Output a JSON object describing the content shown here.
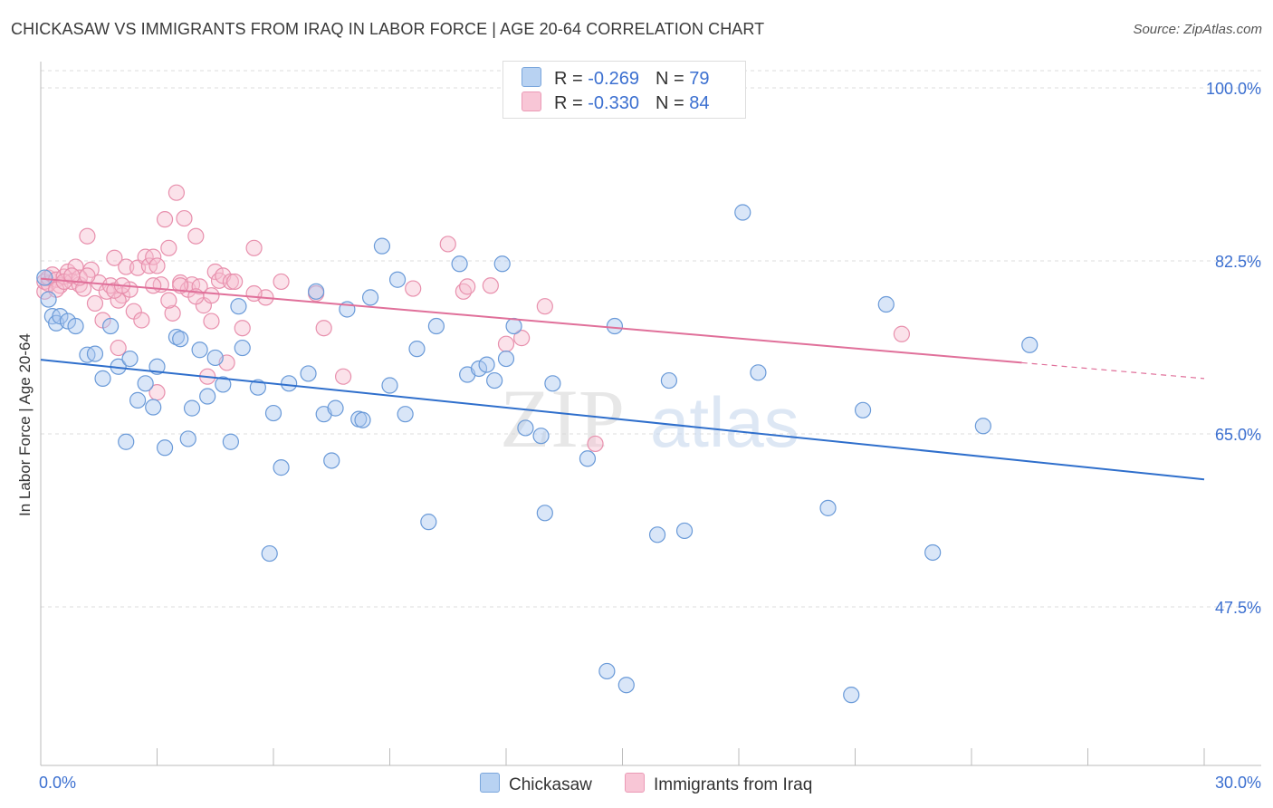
{
  "title": "CHICKASAW VS IMMIGRANTS FROM IRAQ IN LABOR FORCE | AGE 20-64 CORRELATION CHART",
  "source": "Source: ZipAtlas.com",
  "watermark": {
    "zip": "ZIP",
    "atlas": "atlas"
  },
  "legend": {
    "series1": {
      "r_label": "R = ",
      "r_value": "-0.269",
      "n_label": "N = ",
      "n_value": "79"
    },
    "series2": {
      "r_label": "R = ",
      "r_value": "-0.330",
      "n_label": "N = ",
      "n_value": "84"
    }
  },
  "colors": {
    "chickasaw_fill": "#aac8f0",
    "chickasaw_stroke": "#6a9ad8",
    "chickasaw_line": "#2f6fcc",
    "iraq_fill": "#f6bfd0",
    "iraq_stroke": "#e890ad",
    "iraq_line": "#e0709a",
    "tick_label": "#3b6fd0",
    "grid": "#dddddd"
  },
  "chart_data": {
    "type": "scatter",
    "title": "CHICKASAW VS IMMIGRANTS FROM IRAQ IN LABOR FORCE | AGE 20-64 CORRELATION CHART",
    "xlabel": "",
    "ylabel": "In Labor Force | Age 20-64",
    "xlim": [
      0,
      30
    ],
    "ylim": [
      32,
      104
    ],
    "x_tick_labels": [
      "0.0%",
      "30.0%"
    ],
    "y_ticks": [
      47.5,
      65.0,
      82.5,
      100.0
    ],
    "y_tick_labels": [
      "47.5%",
      "65.0%",
      "82.5%",
      "100.0%"
    ],
    "grid": "horizontal dashed",
    "legend_position": "top-center",
    "series": [
      {
        "name": "Chickasaw",
        "points": [
          [
            0.1,
            80.8
          ],
          [
            0.2,
            78.6
          ],
          [
            0.3,
            76.9
          ],
          [
            0.4,
            76.2
          ],
          [
            0.5,
            76.9
          ],
          [
            0.7,
            76.4
          ],
          [
            0.9,
            75.9
          ],
          [
            1.2,
            73.0
          ],
          [
            1.4,
            73.1
          ],
          [
            1.6,
            70.6
          ],
          [
            1.8,
            75.9
          ],
          [
            2.0,
            71.8
          ],
          [
            2.2,
            64.2
          ],
          [
            2.3,
            72.6
          ],
          [
            2.5,
            68.4
          ],
          [
            2.7,
            70.1
          ],
          [
            2.9,
            67.7
          ],
          [
            3.0,
            71.8
          ],
          [
            3.2,
            63.6
          ],
          [
            3.5,
            74.8
          ],
          [
            3.6,
            74.6
          ],
          [
            3.8,
            64.5
          ],
          [
            3.9,
            67.6
          ],
          [
            4.1,
            73.5
          ],
          [
            4.3,
            68.8
          ],
          [
            4.5,
            72.7
          ],
          [
            4.7,
            70.0
          ],
          [
            4.9,
            64.2
          ],
          [
            5.1,
            77.9
          ],
          [
            5.2,
            73.7
          ],
          [
            5.6,
            69.7
          ],
          [
            6.0,
            67.1
          ],
          [
            6.2,
            61.6
          ],
          [
            6.4,
            70.1
          ],
          [
            6.9,
            71.1
          ],
          [
            7.1,
            79.4
          ],
          [
            7.3,
            67.0
          ],
          [
            7.5,
            62.3
          ],
          [
            7.6,
            67.6
          ],
          [
            7.9,
            77.6
          ],
          [
            8.2,
            66.5
          ],
          [
            8.3,
            66.4
          ],
          [
            8.5,
            78.8
          ],
          [
            8.8,
            84.0
          ],
          [
            9.0,
            69.9
          ],
          [
            9.2,
            80.6
          ],
          [
            9.4,
            67.0
          ],
          [
            9.7,
            73.6
          ],
          [
            10.0,
            56.1
          ],
          [
            10.2,
            75.9
          ],
          [
            10.8,
            82.2
          ],
          [
            11.0,
            71.0
          ],
          [
            11.3,
            71.6
          ],
          [
            11.5,
            72.0
          ],
          [
            11.7,
            70.4
          ],
          [
            11.9,
            82.2
          ],
          [
            12.0,
            72.6
          ],
          [
            12.2,
            75.9
          ],
          [
            12.5,
            65.6
          ],
          [
            12.9,
            64.8
          ],
          [
            13.0,
            57.0
          ],
          [
            13.2,
            70.1
          ],
          [
            14.1,
            62.5
          ],
          [
            14.6,
            41.0
          ],
          [
            14.8,
            75.9
          ],
          [
            15.1,
            39.6
          ],
          [
            15.9,
            54.8
          ],
          [
            16.2,
            70.4
          ],
          [
            16.6,
            55.2
          ],
          [
            18.1,
            87.4
          ],
          [
            18.5,
            71.2
          ],
          [
            20.3,
            57.5
          ],
          [
            20.9,
            38.6
          ],
          [
            21.2,
            67.4
          ],
          [
            21.8,
            78.1
          ],
          [
            23.0,
            53.0
          ],
          [
            24.3,
            65.8
          ],
          [
            25.5,
            74.0
          ],
          [
            5.9,
            52.9
          ]
        ],
        "trend": {
          "x": [
            0,
            30
          ],
          "y": [
            72.5,
            60.4
          ]
        }
      },
      {
        "name": "Immigrants from Iraq",
        "points": [
          [
            0.1,
            79.4
          ],
          [
            0.1,
            80.4
          ],
          [
            0.2,
            80.2
          ],
          [
            0.2,
            80.8
          ],
          [
            0.3,
            81.1
          ],
          [
            0.4,
            80.6
          ],
          [
            0.5,
            80.0
          ],
          [
            0.6,
            80.9
          ],
          [
            0.7,
            81.4
          ],
          [
            0.8,
            80.4
          ],
          [
            0.9,
            81.9
          ],
          [
            1.0,
            80.1
          ],
          [
            1.1,
            79.7
          ],
          [
            1.2,
            85.0
          ],
          [
            1.3,
            81.6
          ],
          [
            1.4,
            78.2
          ],
          [
            1.5,
            80.3
          ],
          [
            1.6,
            76.5
          ],
          [
            1.7,
            79.4
          ],
          [
            1.8,
            80.0
          ],
          [
            1.9,
            82.8
          ],
          [
            2.0,
            73.7
          ],
          [
            2.1,
            79.0
          ],
          [
            2.2,
            81.9
          ],
          [
            2.3,
            79.6
          ],
          [
            2.4,
            77.4
          ],
          [
            2.5,
            81.8
          ],
          [
            2.6,
            76.5
          ],
          [
            2.7,
            82.9
          ],
          [
            2.8,
            82.0
          ],
          [
            2.9,
            82.9
          ],
          [
            3.0,
            69.2
          ],
          [
            3.1,
            80.1
          ],
          [
            3.2,
            86.7
          ],
          [
            3.3,
            83.8
          ],
          [
            3.4,
            77.2
          ],
          [
            3.5,
            89.4
          ],
          [
            3.6,
            80.3
          ],
          [
            3.7,
            86.8
          ],
          [
            3.8,
            79.6
          ],
          [
            3.9,
            80.1
          ],
          [
            4.0,
            85.0
          ],
          [
            4.1,
            79.9
          ],
          [
            4.2,
            78.0
          ],
          [
            4.3,
            70.8
          ],
          [
            4.4,
            76.4
          ],
          [
            4.5,
            81.4
          ],
          [
            4.6,
            80.5
          ],
          [
            4.7,
            81.0
          ],
          [
            4.8,
            72.2
          ],
          [
            4.9,
            80.4
          ],
          [
            5.0,
            80.4
          ],
          [
            5.2,
            75.7
          ],
          [
            5.5,
            83.8
          ],
          [
            5.8,
            78.8
          ],
          [
            6.2,
            80.4
          ],
          [
            7.1,
            79.2
          ],
          [
            7.3,
            75.7
          ],
          [
            7.8,
            70.8
          ],
          [
            9.6,
            79.7
          ],
          [
            10.5,
            84.2
          ],
          [
            10.9,
            79.4
          ],
          [
            11.0,
            79.9
          ],
          [
            11.6,
            80.0
          ],
          [
            12.0,
            74.1
          ],
          [
            12.4,
            74.7
          ],
          [
            13.0,
            77.9
          ],
          [
            14.3,
            64.0
          ],
          [
            22.2,
            75.1
          ],
          [
            3.0,
            82.0
          ],
          [
            2.0,
            78.5
          ],
          [
            1.0,
            80.8
          ],
          [
            0.4,
            79.6
          ],
          [
            5.5,
            79.2
          ],
          [
            4.4,
            79.0
          ],
          [
            3.6,
            80.0
          ],
          [
            1.9,
            79.5
          ],
          [
            2.9,
            80.0
          ],
          [
            0.6,
            80.4
          ],
          [
            1.2,
            81.0
          ],
          [
            0.8,
            81.0
          ],
          [
            2.1,
            80.0
          ],
          [
            3.3,
            78.5
          ],
          [
            4.0,
            78.9
          ]
        ],
        "trend": {
          "x": [
            0,
            25.3
          ],
          "y": [
            80.7,
            72.2
          ]
        },
        "trend_dashed": {
          "x": [
            25.3,
            30
          ],
          "y": [
            72.2,
            70.6
          ]
        }
      }
    ]
  },
  "axes": {
    "ylabel": "In Labor Force | Age 20-64",
    "y_tick_labels": [
      "47.5%",
      "65.0%",
      "82.5%",
      "100.0%"
    ],
    "x_min_label": "0.0%",
    "x_max_label": "30.0%"
  },
  "bottom_legend": {
    "series1": "Chickasaw",
    "series2": "Immigrants from Iraq"
  }
}
